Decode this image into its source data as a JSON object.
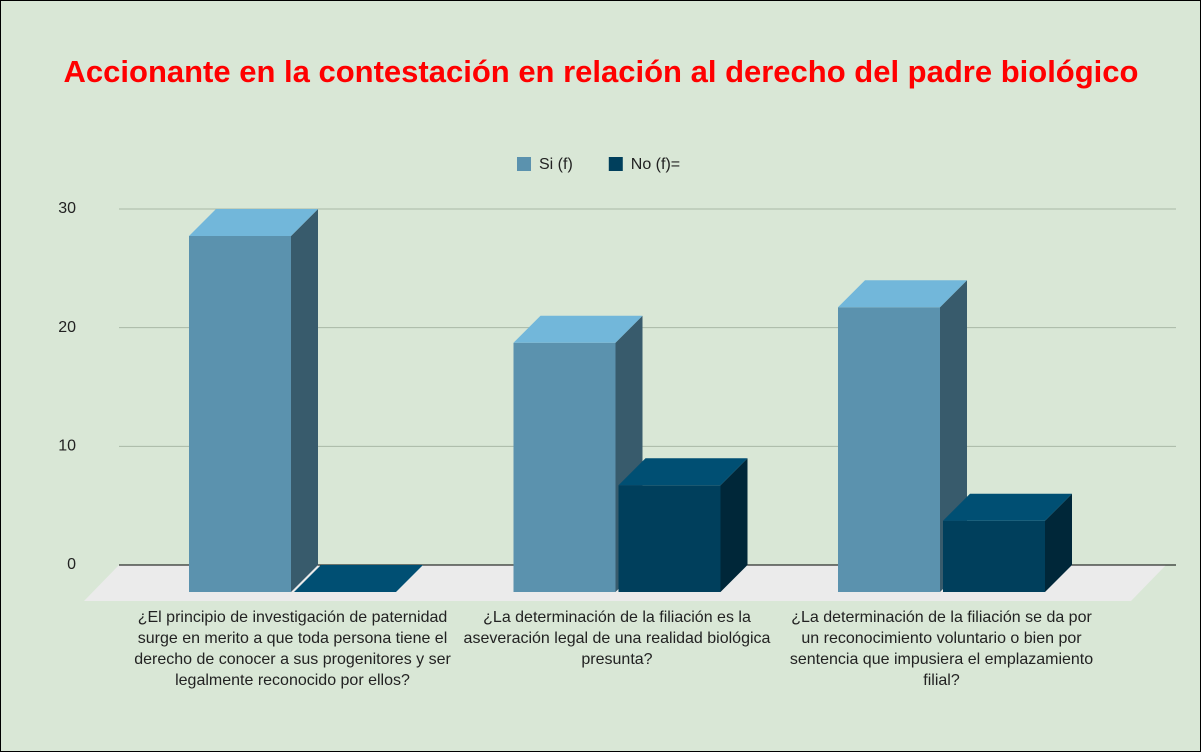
{
  "chart_data": {
    "type": "bar3d",
    "title": "Accionante en la contestación en relación al derecho del padre biológico",
    "categories": [
      "¿El principio de investigación de paternidad surge en merito a que toda persona tiene el derecho de conocer a sus progenitores y ser legalmente reconocido por ellos?",
      "¿La determinación de la filiación es la aseveración legal de una realidad biológica presunta?",
      "¿La determinación de la filiación se da por un reconocimiento voluntario o bien por sentencia que impusiera el emplazamiento filial?"
    ],
    "series": [
      {
        "name": "Si (f)",
        "color": "#5b92ae",
        "values": [
          30,
          21,
          24
        ]
      },
      {
        "name": "No (f)=",
        "color": "#003f5c",
        "values": [
          0,
          9,
          6
        ]
      }
    ],
    "ylim": [
      0,
      30
    ],
    "yticks": [
      0,
      10,
      20,
      30
    ],
    "grid": true,
    "legend": "top"
  }
}
